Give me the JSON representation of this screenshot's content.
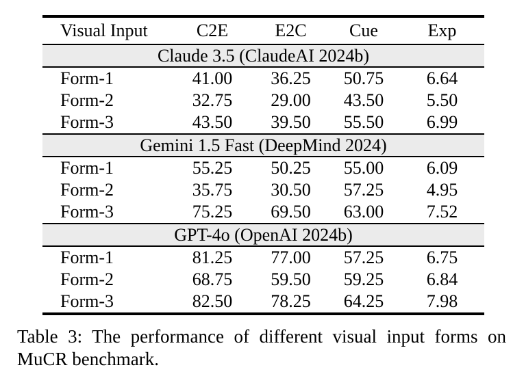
{
  "table": {
    "columns": [
      "Visual Input",
      "C2E",
      "E2C",
      "Cue",
      "Exp"
    ],
    "sections": [
      {
        "title": "Claude 3.5 (ClaudeAI 2024b)",
        "rows": [
          {
            "label": "Form-1",
            "values": [
              "41.00",
              "36.25",
              "50.75",
              "6.64"
            ]
          },
          {
            "label": "Form-2",
            "values": [
              "32.75",
              "29.00",
              "43.50",
              "5.50"
            ]
          },
          {
            "label": "Form-3",
            "values": [
              "43.50",
              "39.50",
              "55.50",
              "6.99"
            ]
          }
        ]
      },
      {
        "title": "Gemini 1.5 Fast (DeepMind 2024)",
        "rows": [
          {
            "label": "Form-1",
            "values": [
              "55.25",
              "50.25",
              "55.00",
              "6.09"
            ]
          },
          {
            "label": "Form-2",
            "values": [
              "35.75",
              "30.50",
              "57.25",
              "4.95"
            ]
          },
          {
            "label": "Form-3",
            "values": [
              "75.25",
              "69.50",
              "63.00",
              "7.52"
            ]
          }
        ]
      },
      {
        "title": "GPT-4o (OpenAI 2024b)",
        "rows": [
          {
            "label": "Form-1",
            "values": [
              "81.25",
              "77.00",
              "57.25",
              "6.75"
            ]
          },
          {
            "label": "Form-2",
            "values": [
              "68.75",
              "59.50",
              "59.25",
              "6.84"
            ]
          },
          {
            "label": "Form-3",
            "values": [
              "82.50",
              "78.25",
              "64.25",
              "7.98"
            ]
          }
        ]
      }
    ]
  },
  "caption": "Table 3: The performance of different visual input forms on MuCR benchmark.",
  "colors": {
    "section_band": "#ebebeb",
    "rule": "#000000",
    "background": "#ffffff",
    "text": "#000000"
  }
}
